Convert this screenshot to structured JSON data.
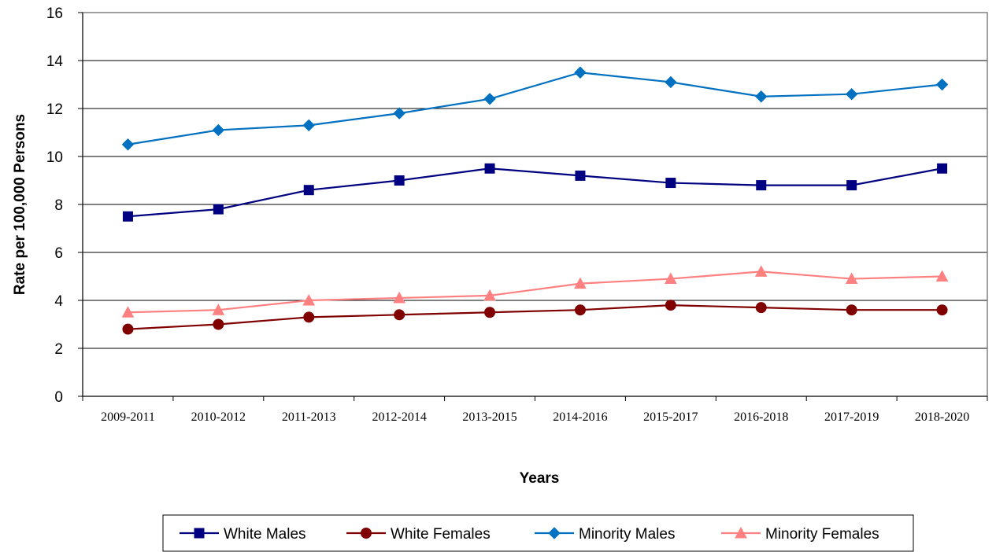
{
  "chart_data": {
    "type": "line",
    "title": "",
    "xlabel": "Years",
    "ylabel": "Rate per 100,000 Persons",
    "ylim": [
      0,
      16
    ],
    "yticks": [
      0,
      2,
      4,
      6,
      8,
      10,
      12,
      14,
      16
    ],
    "grid": true,
    "legend_position": "bottom",
    "categories": [
      "2009-2011",
      "2010-2012",
      "2011-2013",
      "2012-2014",
      "2013-2015",
      "2014-2016",
      "2015-2017",
      "2016-2018",
      "2017-2019",
      "2018-2020"
    ],
    "series": [
      {
        "name": "White Males",
        "color": "#000080",
        "marker": "square",
        "values": [
          7.5,
          7.8,
          8.6,
          9.0,
          9.5,
          9.2,
          8.9,
          8.8,
          8.8,
          9.5
        ]
      },
      {
        "name": "White Females",
        "color": "#800000",
        "marker": "circle",
        "values": [
          2.8,
          3.0,
          3.3,
          3.4,
          3.5,
          3.6,
          3.8,
          3.7,
          3.6,
          3.6
        ]
      },
      {
        "name": "Minority Males",
        "color": "#0070C0",
        "marker": "diamond",
        "values": [
          10.5,
          11.1,
          11.3,
          11.8,
          12.4,
          13.5,
          13.1,
          12.5,
          12.6,
          13.0
        ]
      },
      {
        "name": "Minority Females",
        "color": "#FF8080",
        "marker": "triangle",
        "values": [
          3.5,
          3.6,
          4.0,
          4.1,
          4.2,
          4.7,
          4.9,
          5.2,
          4.9,
          5.0
        ]
      }
    ]
  }
}
